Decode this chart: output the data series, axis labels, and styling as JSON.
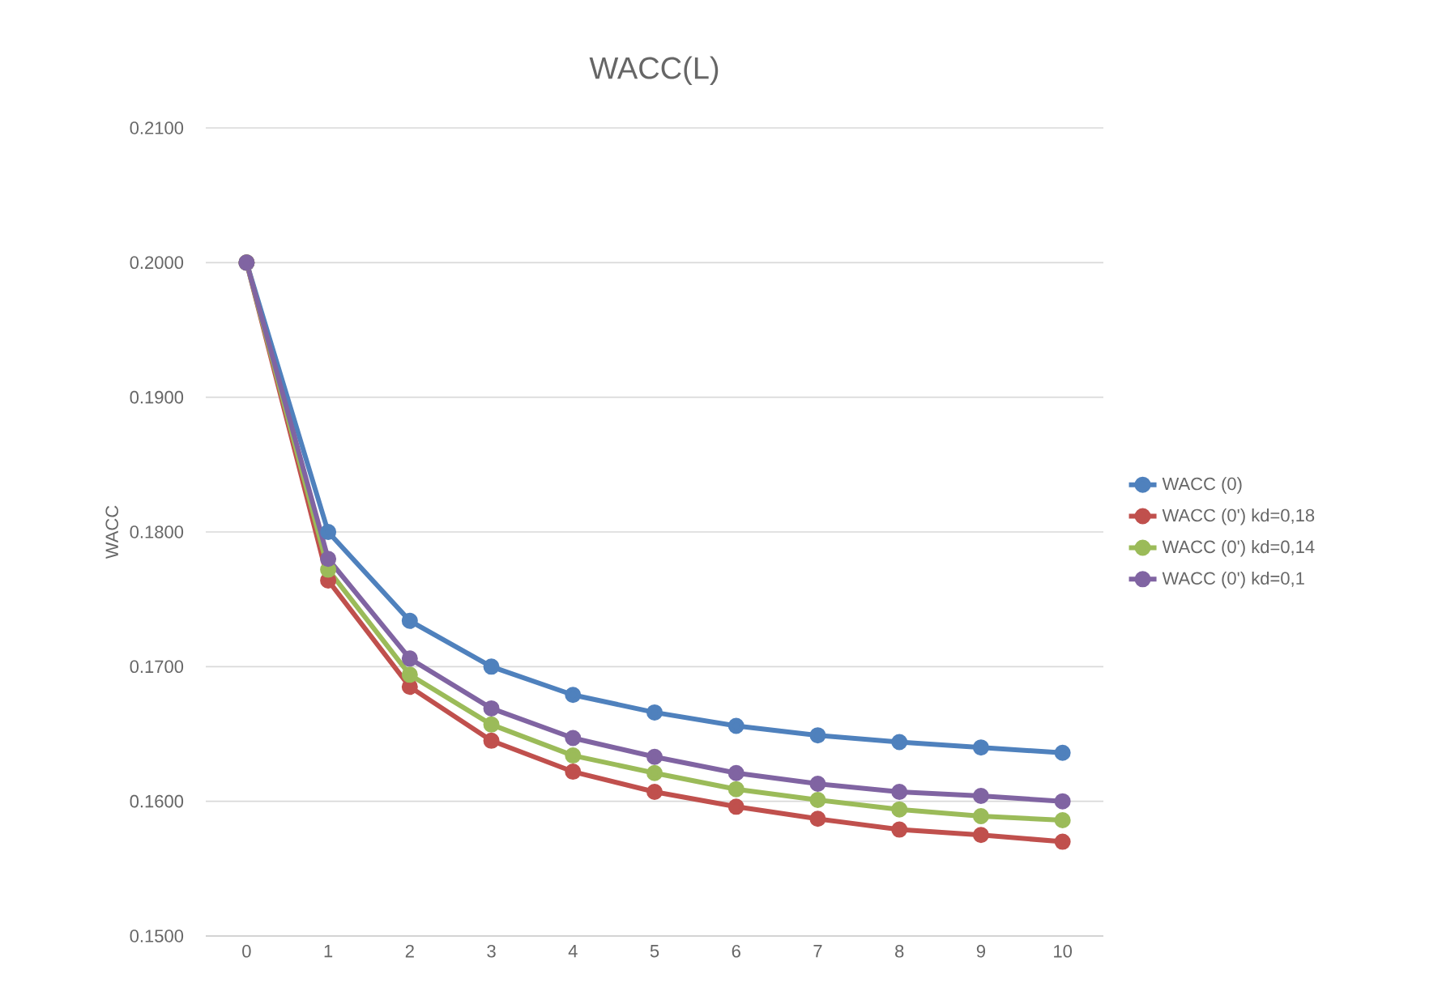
{
  "chart_data": {
    "type": "line",
    "title": "WACC(L)",
    "ylabel": "WACC",
    "categories": [
      "0",
      "1",
      "2",
      "3",
      "4",
      "5",
      "6",
      "7",
      "8",
      "9",
      "10"
    ],
    "series": [
      {
        "name": "WACC (0)",
        "color": "#4f81bd",
        "values": [
          0.2,
          0.18,
          0.1734,
          0.17,
          0.1679,
          0.1666,
          0.1656,
          0.1649,
          0.1644,
          0.164,
          0.1636
        ]
      },
      {
        "name": "WACC (0') kd=0,18",
        "color": "#c0504d",
        "values": [
          0.2,
          0.1764,
          0.1685,
          0.1645,
          0.1622,
          0.1607,
          0.1596,
          0.1587,
          0.1579,
          0.1575,
          0.157
        ]
      },
      {
        "name": "WACC (0') kd=0,14",
        "color": "#9bbb59",
        "values": [
          0.2,
          0.1772,
          0.1694,
          0.1657,
          0.1634,
          0.1621,
          0.1609,
          0.1601,
          0.1594,
          0.1589,
          0.1586
        ]
      },
      {
        "name": "WACC (0') kd=0,1",
        "color": "#8064a2",
        "values": [
          0.2,
          0.178,
          0.1706,
          0.1669,
          0.1647,
          0.1633,
          0.1621,
          0.1613,
          0.1607,
          0.1604,
          0.16
        ]
      }
    ],
    "ylim": [
      0.15,
      0.21
    ],
    "yticks": [
      {
        "value": 0.15,
        "label": "0.1500"
      },
      {
        "value": 0.16,
        "label": "0.1600"
      },
      {
        "value": 0.17,
        "label": "0.1700"
      },
      {
        "value": 0.18,
        "label": "0.1800"
      },
      {
        "value": 0.19,
        "label": "0.1900"
      },
      {
        "value": 0.2,
        "label": "0.2000"
      },
      {
        "value": 0.21,
        "label": "0.2100"
      }
    ],
    "grid": "y",
    "legend": "right",
    "marker": "circle",
    "line_style": "solid"
  }
}
